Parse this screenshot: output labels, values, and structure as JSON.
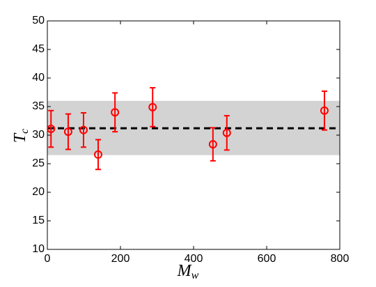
{
  "chart_data": {
    "type": "scatter",
    "xlabel": [
      "M",
      "w"
    ],
    "ylabel": [
      "T",
      "c"
    ],
    "x": [
      10,
      57,
      99,
      139,
      185,
      288,
      453,
      491,
      758
    ],
    "series": [
      {
        "color": "#ff0000",
        "values": [
          31.1,
          30.6,
          30.9,
          26.6,
          34.0,
          34.9,
          28.4,
          30.4,
          34.3
        ],
        "errors": [
          3.2,
          3.1,
          3.0,
          2.6,
          3.4,
          3.4,
          2.9,
          3.0,
          3.4
        ]
      }
    ],
    "band": [
      26.5,
      36.0
    ],
    "band_color": "#d3d3d3",
    "mean": 31.2,
    "mean_color": "#000000",
    "xlim": [
      0,
      800
    ],
    "xticks": [
      0,
      200,
      400,
      600,
      800
    ],
    "ylim": [
      10,
      50
    ],
    "yticks": [
      10,
      15,
      20,
      25,
      30,
      35,
      40,
      45,
      50
    ],
    "grid": false
  }
}
